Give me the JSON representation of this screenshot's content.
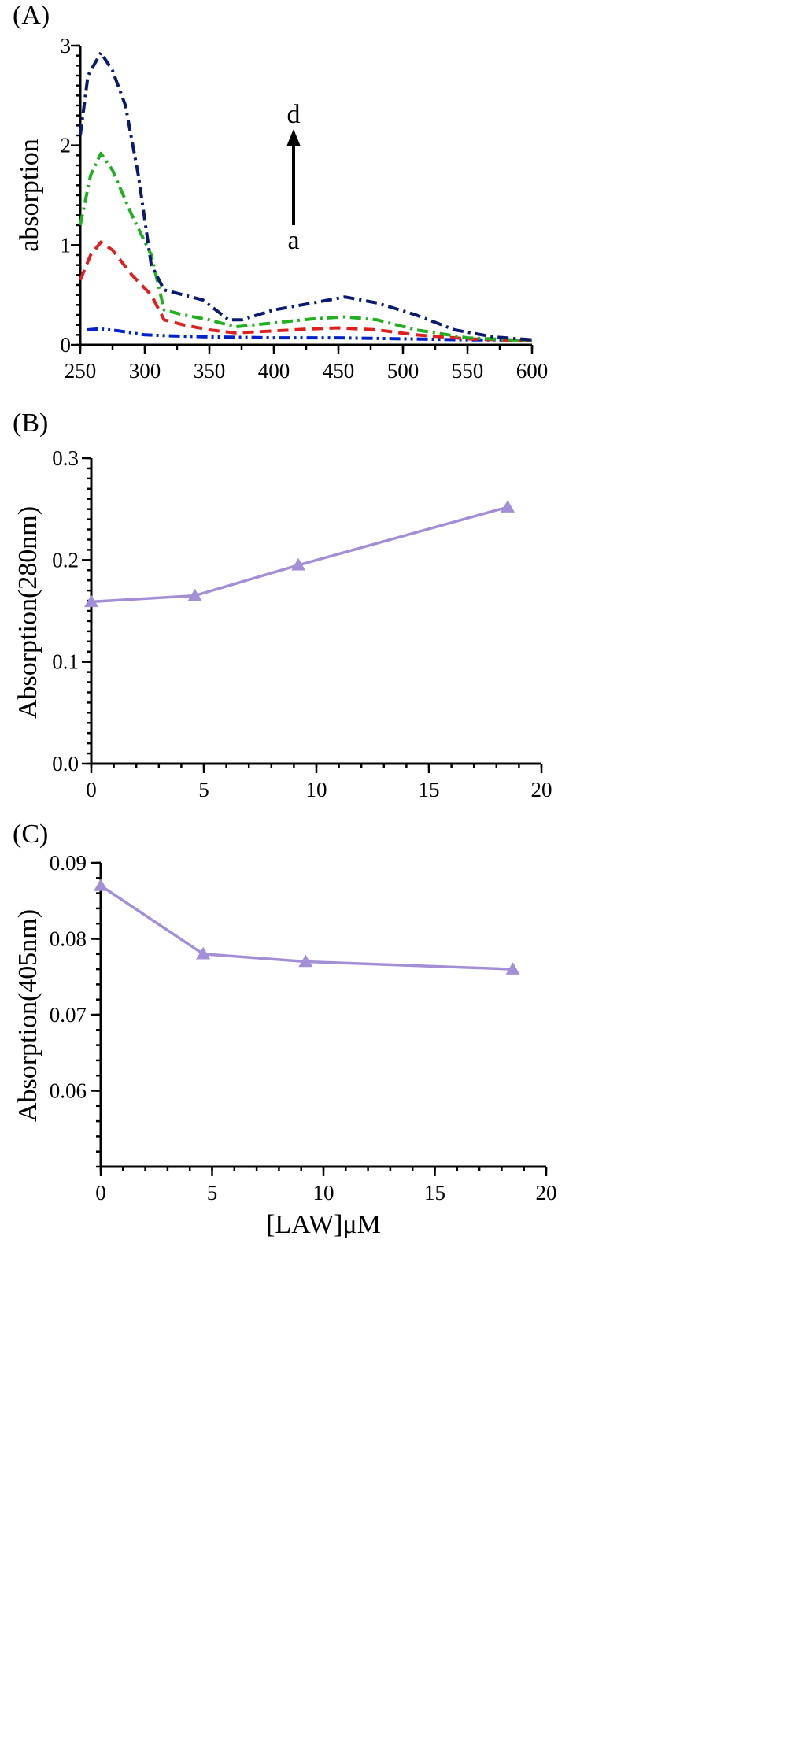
{
  "chart_data": [
    {
      "panel": "(A)",
      "type": "line",
      "xlabel": "",
      "ylabel": "absorption",
      "xlim": [
        250,
        600
      ],
      "ylim": [
        0,
        3
      ],
      "xticks": [
        "250",
        "300",
        "350",
        "400",
        "450",
        "500",
        "550",
        "600"
      ],
      "yticks": [
        "0",
        "1",
        "2",
        "3"
      ],
      "annotation": {
        "top": "d",
        "bottom": "a",
        "arrow": "up"
      },
      "grid": false,
      "series": [
        {
          "color": "#0022cc",
          "dash": "dash-dot-dot",
          "points": [
            [
              255,
              0.15
            ],
            [
              265,
              0.16
            ],
            [
              280,
              0.14
            ],
            [
              300,
              0.1
            ],
            [
              320,
              0.09
            ],
            [
              350,
              0.08
            ],
            [
              400,
              0.07
            ],
            [
              450,
              0.07
            ],
            [
              500,
              0.06
            ],
            [
              550,
              0.05
            ],
            [
              600,
              0.05
            ]
          ]
        },
        {
          "color": "#e02020",
          "dash": "dash",
          "points": [
            [
              250,
              0.65
            ],
            [
              258,
              0.9
            ],
            [
              266,
              1.03
            ],
            [
              275,
              0.95
            ],
            [
              290,
              0.7
            ],
            [
              305,
              0.5
            ],
            [
              315,
              0.25
            ],
            [
              330,
              0.2
            ],
            [
              350,
              0.15
            ],
            [
              370,
              0.12
            ],
            [
              400,
              0.14
            ],
            [
              430,
              0.16
            ],
            [
              450,
              0.17
            ],
            [
              480,
              0.15
            ],
            [
              510,
              0.1
            ],
            [
              550,
              0.06
            ],
            [
              600,
              0.04
            ]
          ]
        },
        {
          "color": "#22b022",
          "dash": "dash-dot",
          "points": [
            [
              250,
              1.2
            ],
            [
              258,
              1.7
            ],
            [
              266,
              1.92
            ],
            [
              275,
              1.75
            ],
            [
              290,
              1.3
            ],
            [
              305,
              0.9
            ],
            [
              315,
              0.35
            ],
            [
              330,
              0.3
            ],
            [
              350,
              0.25
            ],
            [
              370,
              0.18
            ],
            [
              400,
              0.22
            ],
            [
              430,
              0.26
            ],
            [
              455,
              0.28
            ],
            [
              480,
              0.25
            ],
            [
              510,
              0.15
            ],
            [
              550,
              0.07
            ],
            [
              600,
              0.04
            ]
          ]
        },
        {
          "color": "#0a1a70",
          "dash": "dash-dot",
          "points": [
            [
              250,
              2.1
            ],
            [
              256,
              2.7
            ],
            [
              266,
              2.93
            ],
            [
              275,
              2.75
            ],
            [
              285,
              2.4
            ],
            [
              295,
              1.7
            ],
            [
              305,
              0.8
            ],
            [
              315,
              0.55
            ],
            [
              330,
              0.5
            ],
            [
              345,
              0.45
            ],
            [
              365,
              0.25
            ],
            [
              375,
              0.25
            ],
            [
              400,
              0.35
            ],
            [
              430,
              0.42
            ],
            [
              455,
              0.48
            ],
            [
              480,
              0.42
            ],
            [
              510,
              0.3
            ],
            [
              540,
              0.15
            ],
            [
              570,
              0.08
            ],
            [
              600,
              0.05
            ]
          ]
        }
      ]
    },
    {
      "panel": "(B)",
      "type": "line",
      "xlabel": "",
      "ylabel": "Absorption(280nm)",
      "xlim": [
        0,
        20
      ],
      "ylim": [
        0,
        0.3
      ],
      "xticks": [
        "0",
        "5",
        "10",
        "15",
        "20"
      ],
      "yticks": [
        "0.0",
        "0.1",
        "0.2",
        "0.3"
      ],
      "marker": "triangle",
      "color": "#a48fd6",
      "x": [
        0,
        4.6,
        9.2,
        18.5
      ],
      "y": [
        0.159,
        0.165,
        0.195,
        0.252
      ]
    },
    {
      "panel": "(C)",
      "type": "line",
      "xlabel": "[LAW]μM",
      "ylabel": "Absorption(405nm)",
      "xlim": [
        0,
        20
      ],
      "ylim": [
        0.05,
        0.09
      ],
      "xticks": [
        "0",
        "5",
        "10",
        "15",
        "20"
      ],
      "yticks": [
        "0.06",
        "0.07",
        "0.08",
        "0.09"
      ],
      "marker": "triangle",
      "color": "#a48fd6",
      "x": [
        0,
        4.6,
        9.2,
        18.5
      ],
      "y": [
        0.087,
        0.078,
        0.077,
        0.076
      ]
    }
  ]
}
